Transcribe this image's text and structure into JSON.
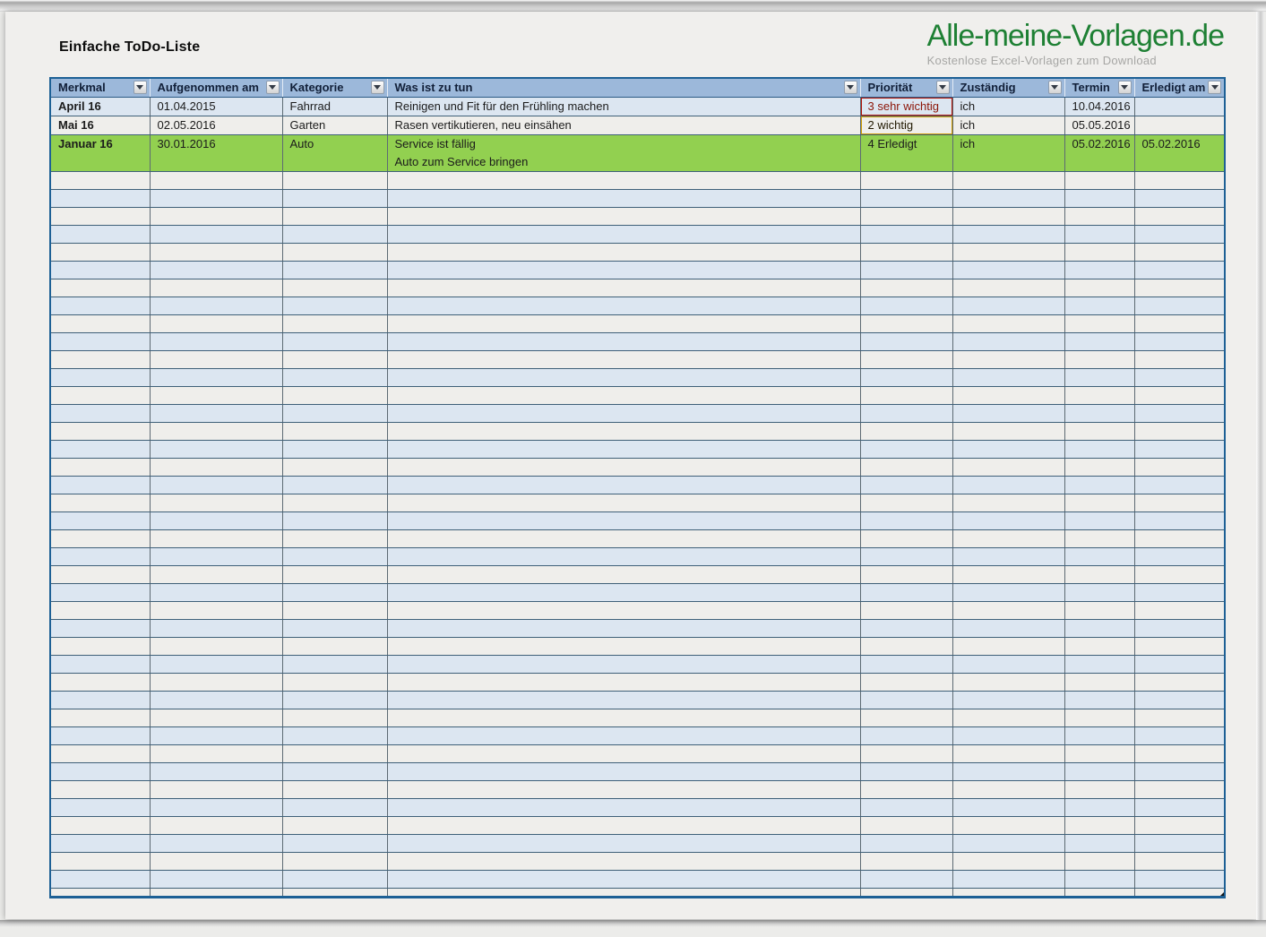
{
  "window": {
    "title": "Einfache ToDo-Liste"
  },
  "brand": {
    "name": "Alle-meine-Vorlagen.de",
    "tagline": "Kostenlose Excel-Vorlagen zum Download"
  },
  "table": {
    "columns": [
      {
        "label": "Merkmal"
      },
      {
        "label": "Aufgenommen am"
      },
      {
        "label": "Kategorie"
      },
      {
        "label": "Was ist zu tun"
      },
      {
        "label": "Priorität"
      },
      {
        "label": "Zuständig"
      },
      {
        "label": "Termin"
      },
      {
        "label": "Erledigt am"
      }
    ],
    "rows": [
      {
        "merkmal": "April 16",
        "aufgenommen_am": "01.04.2015",
        "kategorie": "Fahrrad",
        "was_ist_zu_tun": [
          "Reinigen und Fit für den Frühling machen"
        ],
        "prioritaet": "3 sehr wichtig",
        "prioritaet_status": "sehr-wichtig",
        "zustaendig": "ich",
        "termin": "10.04.2016",
        "erledigt_am": ""
      },
      {
        "merkmal": "Mai 16",
        "aufgenommen_am": "02.05.2016",
        "kategorie": "Garten",
        "was_ist_zu_tun": [
          "Rasen vertikutieren, neu einsähen"
        ],
        "prioritaet": "2 wichtig",
        "prioritaet_status": "wichtig",
        "zustaendig": "ich",
        "termin": "05.05.2016",
        "erledigt_am": ""
      },
      {
        "merkmal": "Januar 16",
        "aufgenommen_am": "30.01.2016",
        "kategorie": "Auto",
        "was_ist_zu_tun": [
          "Service ist fällig",
          "Auto zum Service bringen"
        ],
        "prioritaet": "4 Erledigt",
        "prioritaet_status": "erledigt",
        "zustaendig": "ich",
        "termin": "05.02.2016",
        "erledigt_am": "05.02.2016"
      }
    ],
    "empty_row_count": 41,
    "filter_icon": "chevron-down"
  },
  "colors": {
    "header-bg": "#9cb8da",
    "header-text": "#111f38",
    "row-blue": "#dce6f1",
    "row-white": "#efeeeb",
    "row-green": "#92d050",
    "prio-red-bg": "#ff0200",
    "prio-red-text": "#8c1507",
    "prio-orange-bg": "#fdbf00",
    "grid-h": "#3f6078",
    "grid-v": "#5d6a73",
    "outer-border": "#1d6095",
    "logo-green": "#1e8034",
    "tagline-gray": "#a6a6a4",
    "title-color": "#0d0d0d"
  }
}
